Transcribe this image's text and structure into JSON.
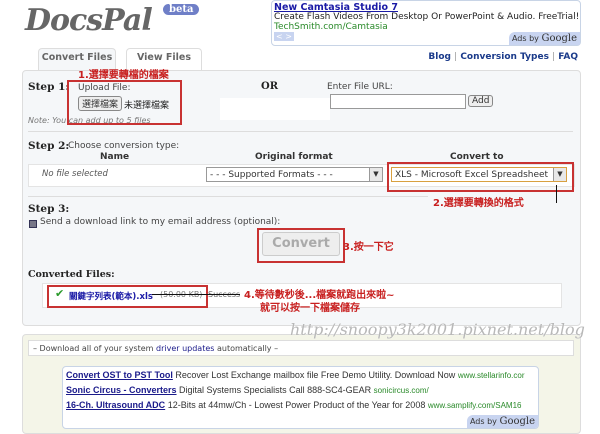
{
  "header": {
    "logo": "DocsPal",
    "beta": "beta"
  },
  "top_ad": {
    "title": "New Camtasia Studio 7",
    "description": "Create Flash Videos From Desktop Or PowerPoint & Audio. FreeTrial!",
    "url": "TechSmith.com/Camtasia",
    "nav": "< >",
    "ads_by": "Ads by",
    "google": "Google"
  },
  "tabs": [
    {
      "label": "Convert Files",
      "active": true
    },
    {
      "label": "View Files",
      "active": false
    }
  ],
  "links": [
    "Blog",
    "Conversion Types",
    "FAQ"
  ],
  "step1": {
    "label": "Step 1:",
    "upload_label": "Upload File:",
    "choose_button": "選擇檔案",
    "no_file": "未選擇檔案",
    "or": "OR",
    "url_label": "Enter File URL:",
    "url_value": "",
    "add_button": "Add",
    "note": "Note: You can add up to 5 files",
    "annotation": "1.選擇要轉檔的檔案"
  },
  "step2": {
    "label": "Step 2:",
    "instruction": "Choose conversion type:",
    "col_name": "Name",
    "col_original": "Original format",
    "col_convert": "Convert to",
    "file_name": "No file selected",
    "original_value": "- - - Supported Formats - - -",
    "convert_value": "XLS - Microsoft Excel Spreadsheet",
    "annotation": "2.選擇要轉換的格式"
  },
  "step3": {
    "label": "Step 3:",
    "email_option": "Send a download link to my email address (optional):",
    "email_checked": false,
    "convert_button": "Convert",
    "annotation": "3.按一下它"
  },
  "converted": {
    "label": "Converted Files:",
    "file": "關鍵字列表(範本).xls",
    "size": "(50.00 KB)",
    "status": "Success",
    "annotation_line1": "4.等待數秒後...檔案就跑出來啦~",
    "annotation_line2": "就可以按一下檔案儲存"
  },
  "watermark": "http://snoopy3k2001.pixnet.net/blog",
  "driver_bar": {
    "prefix": "– Download all of your system ",
    "link": "driver updates",
    "suffix": " automatically –"
  },
  "bottom_ads": [
    {
      "title": "Convert OST to PST Tool",
      "text": "Recover Lost Exchange mailbox file Free Demo Utility. Download Now",
      "url": "www.stellarinfo.cor"
    },
    {
      "title": "Sonic Circus - Converters",
      "text": "Digital Systems Specialists Call 888-SC4-GEAR",
      "url": "sonicircus.com/"
    },
    {
      "title": "16-Ch. Ultrasound ADC",
      "text": "12-Bits at 44mw/Ch - Lowest Power Product of the Year for 2008",
      "url": "www.samplify.com/SAM16"
    }
  ],
  "bottom_ads_by": "Ads by",
  "bottom_google": "Google",
  "colors": {
    "annotation": "#c83232",
    "link": "#1a3a8a",
    "ad_url": "#2a8a2a"
  }
}
